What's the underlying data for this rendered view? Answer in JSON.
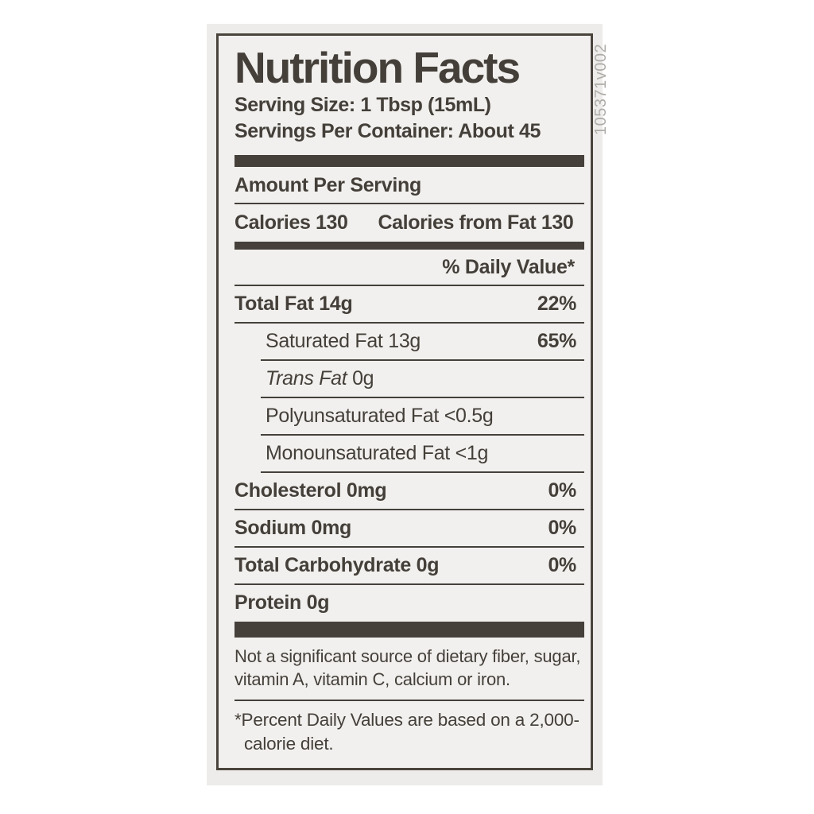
{
  "colors": {
    "ink": "#443f39",
    "bar": "#45403a",
    "panel_bg": "#f1f0ee",
    "sticker_bg": "#edecea",
    "page_bg": "#ffffff",
    "side_code_gray": "#b0ada9"
  },
  "label": {
    "title": "Nutrition Facts",
    "serving_size": "Serving Size: 1 Tbsp (15mL)",
    "servings_per_container": "Servings Per Container: About 45",
    "amount_per_serving": "Amount Per Serving",
    "calories": "Calories 130",
    "calories_from_fat": "Calories from Fat 130",
    "daily_value_header": "% Daily Value*",
    "nutrients": [
      {
        "italic": "",
        "text": "Total Fat 14g",
        "value": "22%",
        "level": "main"
      },
      {
        "italic": "",
        "text": "Saturated Fat 13g",
        "value": "65%",
        "level": "sub"
      },
      {
        "italic": "Trans Fat",
        "text": " 0g",
        "value": "",
        "level": "sub"
      },
      {
        "italic": "",
        "text": "Polyunsaturated Fat <0.5g",
        "value": "",
        "level": "sub"
      },
      {
        "italic": "",
        "text": "Monounsaturated Fat <1g",
        "value": "",
        "level": "sub"
      },
      {
        "italic": "",
        "text": "Cholesterol 0mg",
        "value": "0%",
        "level": "main"
      },
      {
        "italic": "",
        "text": "Sodium 0mg",
        "value": "0%",
        "level": "main"
      },
      {
        "italic": "",
        "text": "Total Carbohydrate 0g",
        "value": "0%",
        "level": "main"
      },
      {
        "italic": "",
        "text": "Protein 0g",
        "value": "",
        "level": "main",
        "last": true
      }
    ],
    "not_significant_note": "Not a significant source of dietary fiber, sugar, vitamin A, vitamin C, calcium or iron.",
    "footnote": "*Percent Daily Values are based on a 2,000-calorie diet.",
    "side_code": "105371v002"
  }
}
